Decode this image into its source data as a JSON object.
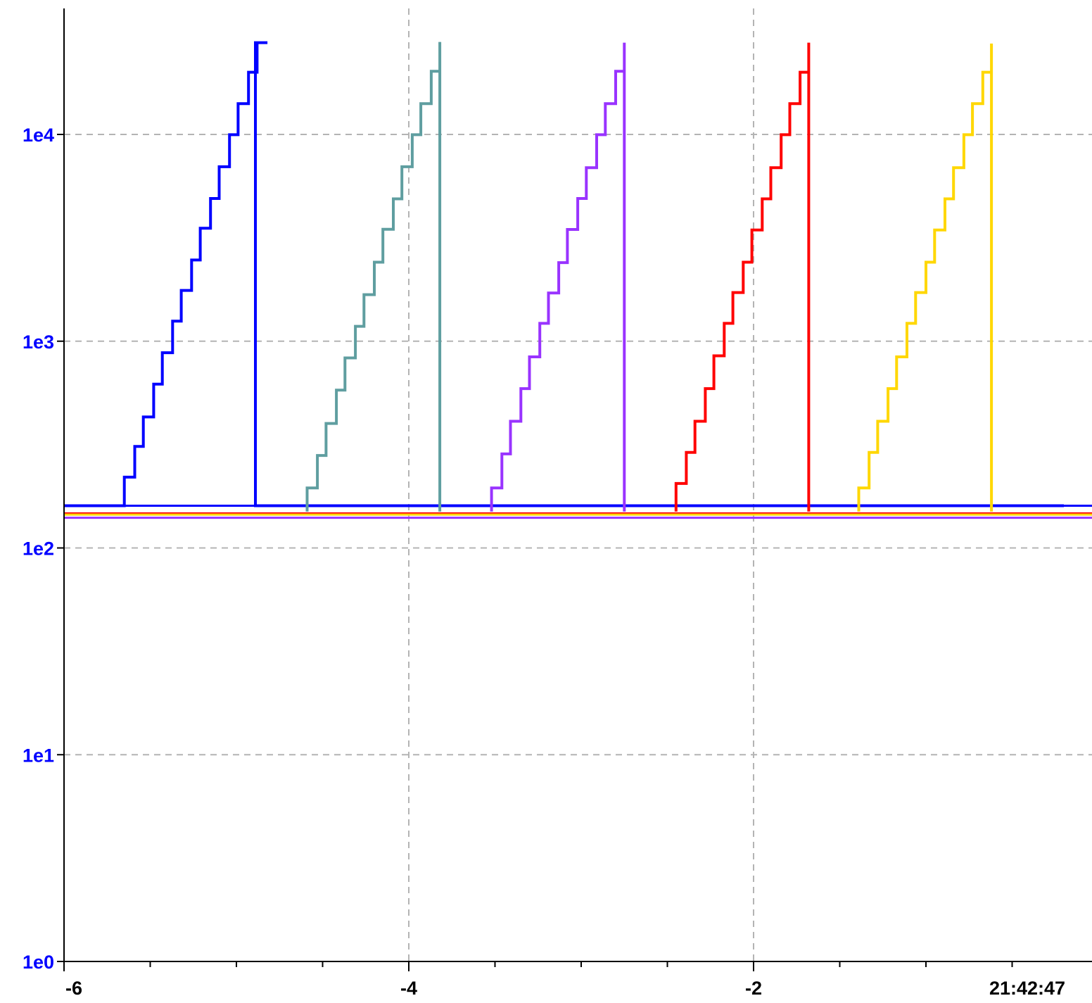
{
  "chart_data": {
    "type": "line",
    "title": "",
    "xlabel": "",
    "ylabel": "",
    "y_scale": "log",
    "ylim": [
      1,
      33000
    ],
    "xlim": [
      -6,
      -0.2
    ],
    "grid": true,
    "legend": "none",
    "yticks": [
      {
        "value": 1,
        "label": "1e0"
      },
      {
        "value": 10,
        "label": "1e1"
      },
      {
        "value": 100,
        "label": "1e2"
      },
      {
        "value": 1000,
        "label": "1e3"
      },
      {
        "value": 10000,
        "label": "1e4"
      }
    ],
    "xticks": [
      {
        "value": -6,
        "label": "-6"
      },
      {
        "value": -4,
        "label": "-4"
      },
      {
        "value": -2,
        "label": "-2"
      },
      {
        "value": -0.5,
        "label": "21:42:47"
      }
    ],
    "ytick_color": "#0000ff",
    "xtick_color": "#000000",
    "baselines": [
      {
        "name": "",
        "color": "#ff0000",
        "value": 147
      },
      {
        "name": "",
        "color": "#ffd700",
        "value": 145
      },
      {
        "name": "",
        "color": "#9933ff",
        "value": 140
      },
      {
        "name": "",
        "color": "#0000ff",
        "value": 160
      }
    ],
    "series": [
      {
        "name": "",
        "color": "#0000ff",
        "x": [
          -6.0,
          -5.65,
          -5.65,
          -5.59,
          -5.59,
          -5.54,
          -5.54,
          -5.48,
          -5.48,
          -5.43,
          -5.43,
          -5.37,
          -5.37,
          -5.32,
          -5.32,
          -5.26,
          -5.26,
          -5.21,
          -5.21,
          -5.15,
          -5.15,
          -5.1,
          -5.1,
          -5.04,
          -5.04,
          -4.99,
          -4.99,
          -4.93,
          -4.93,
          -4.88,
          -4.88,
          -4.82,
          -4.82,
          -4.88,
          -4.89,
          -4.89,
          -0.2
        ],
        "y": [
          160,
          160,
          220,
          220,
          310,
          310,
          430,
          430,
          620,
          620,
          880,
          880,
          1250,
          1250,
          1760,
          1760,
          2470,
          2470,
          3520,
          3520,
          4900,
          4900,
          6980,
          6980,
          9970,
          9970,
          14100,
          14100,
          20000,
          20000,
          27800,
          27800,
          27800,
          27800,
          27800,
          160,
          160
        ]
      },
      {
        "name": "",
        "color": "#5f9ea0",
        "x": [
          -4.59,
          -4.59,
          -4.53,
          -4.53,
          -4.48,
          -4.48,
          -4.42,
          -4.42,
          -4.37,
          -4.37,
          -4.31,
          -4.31,
          -4.26,
          -4.26,
          -4.2,
          -4.2,
          -4.15,
          -4.15,
          -4.09,
          -4.09,
          -4.04,
          -4.04,
          -3.98,
          -3.98,
          -3.93,
          -3.93,
          -3.87,
          -3.87,
          -3.82,
          -3.82,
          -3.82
        ],
        "y": [
          150,
          195,
          195,
          280,
          280,
          400,
          400,
          580,
          580,
          830,
          830,
          1180,
          1180,
          1680,
          1680,
          2410,
          2410,
          3480,
          3480,
          4880,
          4880,
          6980,
          6980,
          9970,
          9970,
          14100,
          14100,
          20200,
          20200,
          28000,
          150
        ]
      },
      {
        "name": "",
        "color": "#9933ff",
        "x": [
          -3.52,
          -3.52,
          -3.46,
          -3.46,
          -3.41,
          -3.41,
          -3.35,
          -3.35,
          -3.3,
          -3.3,
          -3.24,
          -3.24,
          -3.19,
          -3.19,
          -3.13,
          -3.13,
          -3.08,
          -3.08,
          -3.02,
          -3.02,
          -2.97,
          -2.97,
          -2.91,
          -2.91,
          -2.86,
          -2.86,
          -2.8,
          -2.8,
          -2.75,
          -2.75,
          -2.75
        ],
        "y": [
          150,
          195,
          195,
          285,
          285,
          410,
          410,
          590,
          590,
          840,
          840,
          1220,
          1220,
          1710,
          1710,
          2400,
          2400,
          3470,
          3470,
          4900,
          4900,
          6900,
          6900,
          9970,
          9970,
          14100,
          14100,
          20200,
          20200,
          27800,
          150
        ]
      },
      {
        "name": "",
        "color": "#ff0000",
        "x": [
          -2.45,
          -2.45,
          -2.39,
          -2.39,
          -2.34,
          -2.34,
          -2.28,
          -2.28,
          -2.23,
          -2.23,
          -2.17,
          -2.17,
          -2.12,
          -2.12,
          -2.06,
          -2.06,
          -2.01,
          -2.01,
          -1.95,
          -1.95,
          -1.9,
          -1.9,
          -1.84,
          -1.84,
          -1.79,
          -1.79,
          -1.73,
          -1.73,
          -1.68,
          -1.68,
          -1.68
        ],
        "y": [
          150,
          205,
          205,
          290,
          290,
          410,
          410,
          590,
          590,
          850,
          850,
          1220,
          1220,
          1720,
          1720,
          2410,
          2410,
          3450,
          3450,
          4880,
          4880,
          6900,
          6900,
          9970,
          9970,
          14100,
          14100,
          20000,
          20000,
          27800,
          150
        ]
      },
      {
        "name": "",
        "color": "#ffd700",
        "x": [
          -1.39,
          -1.39,
          -1.33,
          -1.33,
          -1.28,
          -1.28,
          -1.22,
          -1.22,
          -1.17,
          -1.17,
          -1.11,
          -1.11,
          -1.06,
          -1.06,
          -1.0,
          -1.0,
          -0.95,
          -0.95,
          -0.89,
          -0.89,
          -0.84,
          -0.84,
          -0.78,
          -0.78,
          -0.73,
          -0.73,
          -0.67,
          -0.67,
          -0.62,
          -0.62,
          -0.62
        ],
        "y": [
          150,
          195,
          195,
          290,
          290,
          410,
          410,
          590,
          590,
          840,
          840,
          1220,
          1220,
          1720,
          1720,
          2410,
          2410,
          3450,
          3450,
          4880,
          4880,
          6900,
          6900,
          9970,
          9970,
          14100,
          14100,
          20000,
          20000,
          27500,
          150
        ]
      }
    ]
  }
}
